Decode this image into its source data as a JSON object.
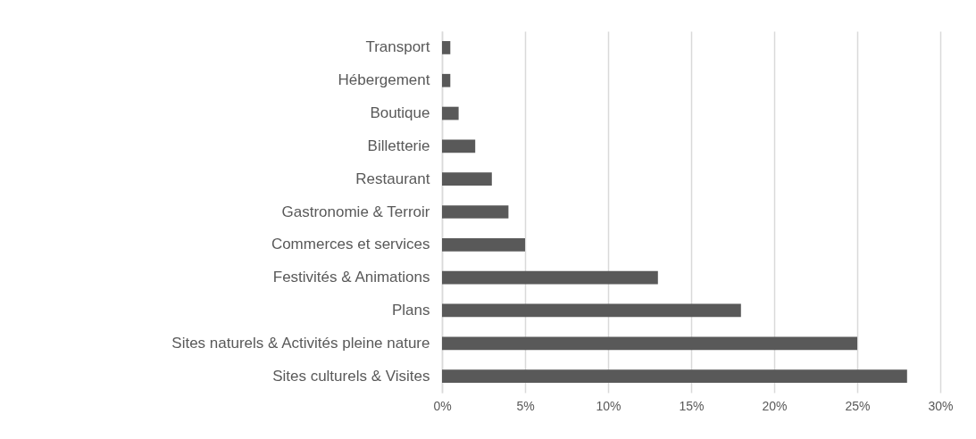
{
  "chart_data": {
    "type": "bar",
    "orientation": "horizontal",
    "categories": [
      "Transport",
      "Hébergement",
      "Boutique",
      "Billetterie",
      "Restaurant",
      "Gastronomie & Terroir",
      "Commerces et services",
      "Festivités & Animations",
      "Plans",
      "Sites naturels & Activités pleine nature",
      "Sites culturels & Visites"
    ],
    "values": [
      0.5,
      0.5,
      1,
      2,
      3,
      4,
      5,
      13,
      18,
      25,
      28
    ],
    "color": "#595959",
    "xlim": [
      0,
      30
    ],
    "xticks": [
      {
        "value": 0,
        "label": "0%"
      },
      {
        "value": 5,
        "label": "5%"
      },
      {
        "value": 10,
        "label": "10%"
      },
      {
        "value": 15,
        "label": "15%"
      },
      {
        "value": 20,
        "label": "20%"
      },
      {
        "value": 25,
        "label": "25%"
      },
      {
        "value": 30,
        "label": "30%"
      }
    ],
    "grid": "x"
  }
}
